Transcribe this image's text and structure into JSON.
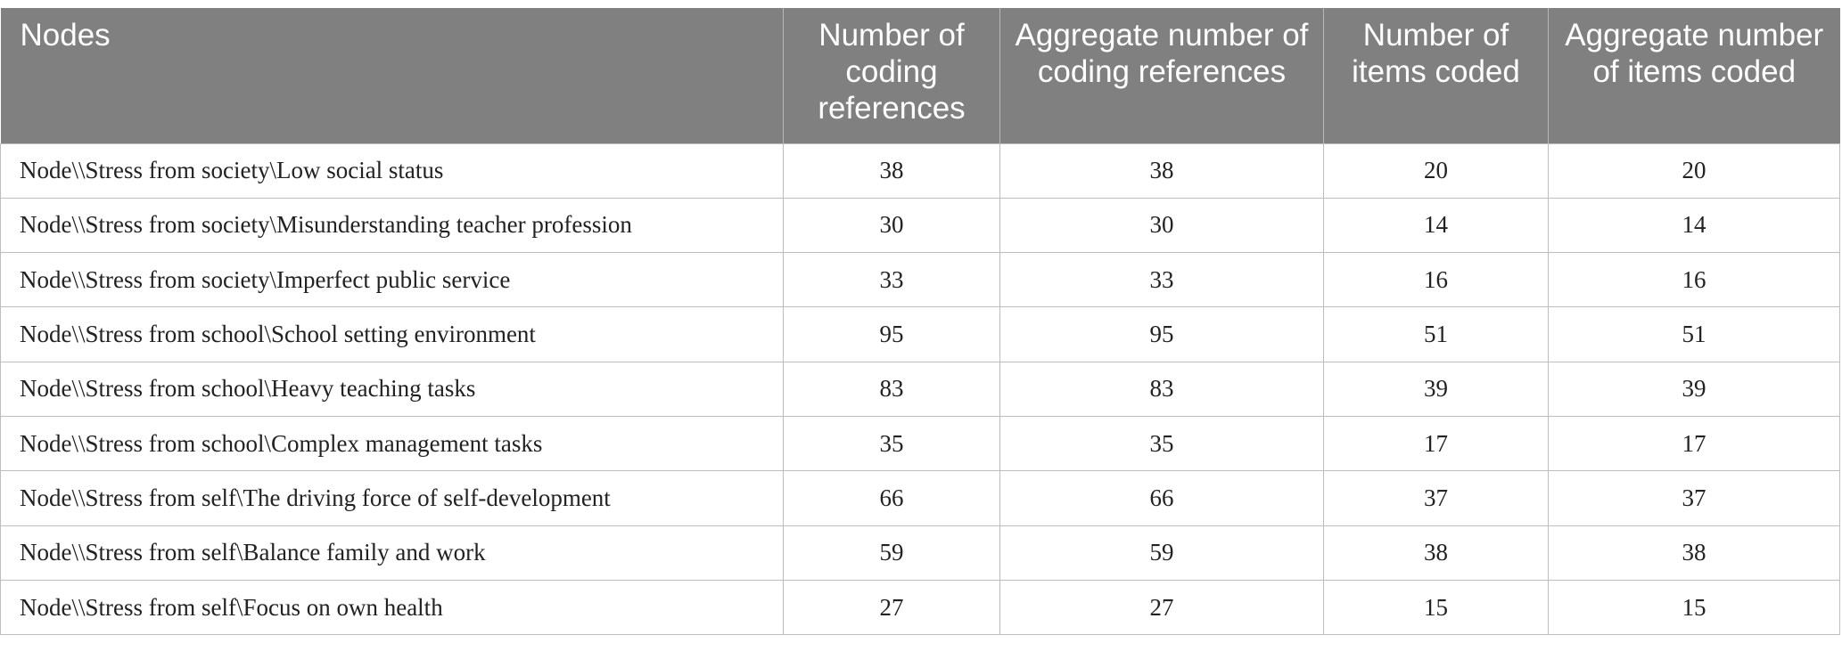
{
  "table": {
    "headers": [
      "Nodes",
      "Number of coding references",
      "Aggregate number of coding references",
      "Number of items coded",
      "Aggregate number of items coded"
    ],
    "rows": [
      [
        "Node\\\\Stress from society\\Low social status",
        "38",
        "38",
        "20",
        "20"
      ],
      [
        "Node\\\\Stress from society\\Misunderstanding teacher profession",
        "30",
        "30",
        "14",
        "14"
      ],
      [
        "Node\\\\Stress from society\\Imperfect public service",
        "33",
        "33",
        "16",
        "16"
      ],
      [
        "Node\\\\Stress from school\\School setting environment",
        "95",
        "95",
        "51",
        "51"
      ],
      [
        "Node\\\\Stress from school\\Heavy teaching tasks",
        "83",
        "83",
        "39",
        "39"
      ],
      [
        "Node\\\\Stress from school\\Complex management tasks",
        "35",
        "35",
        "17",
        "17"
      ],
      [
        "Node\\\\Stress from self\\The driving force of self-development",
        "66",
        "66",
        "37",
        "37"
      ],
      [
        "Node\\\\Stress from self\\Balance family and work",
        "59",
        "59",
        "38",
        "38"
      ],
      [
        "Node\\\\Stress from self\\Focus on own health",
        "27",
        "27",
        "15",
        "15"
      ]
    ]
  }
}
